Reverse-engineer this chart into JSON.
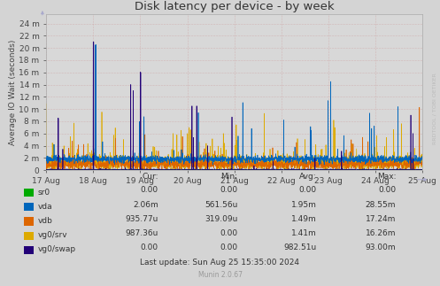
{
  "title": "Disk latency per device - by week",
  "ylabel": "Average IO Wait (seconds)",
  "background_color": "#d4d4d4",
  "plot_bg_color": "#d8d8d8",
  "grid_color": "#cc9999",
  "x_tick_labels": [
    "17 Aug",
    "18 Aug",
    "19 Aug",
    "20 Aug",
    "21 Aug",
    "22 Aug",
    "23 Aug",
    "24 Aug",
    "25 Aug"
  ],
  "y_tick_labels": [
    "0",
    "2 m",
    "4 m",
    "6 m",
    "8 m",
    "10 m",
    "12 m",
    "14 m",
    "16 m",
    "18 m",
    "20 m",
    "22 m",
    "24 m"
  ],
  "y_tick_values": [
    0,
    0.002,
    0.004,
    0.006,
    0.008,
    0.01,
    0.012,
    0.014,
    0.016,
    0.018,
    0.02,
    0.022,
    0.024
  ],
  "ylim": [
    0,
    0.0255
  ],
  "series_order": [
    "vg0/srv",
    "vdb",
    "vda",
    "vg0/swap",
    "sr0"
  ],
  "series": {
    "sr0": {
      "color": "#00aa00"
    },
    "vda": {
      "color": "#0066bb"
    },
    "vdb": {
      "color": "#dd6600"
    },
    "vg0/srv": {
      "color": "#ddaa00"
    },
    "vg0/swap": {
      "color": "#220077"
    }
  },
  "legend_entries": [
    {
      "label": "sr0",
      "color": "#00aa00"
    },
    {
      "label": "vda",
      "color": "#0066bb"
    },
    {
      "label": "vdb",
      "color": "#dd6600"
    },
    {
      "label": "vg0/srv",
      "color": "#ddaa00"
    },
    {
      "label": "vg0/swap",
      "color": "#220077"
    }
  ],
  "stats": [
    [
      "sr0",
      "0.00",
      "0.00",
      "0.00",
      "0.00"
    ],
    [
      "vda",
      "2.06m",
      "561.56u",
      "1.95m",
      "28.55m"
    ],
    [
      "vdb",
      "935.77u",
      "319.09u",
      "1.49m",
      "17.24m"
    ],
    [
      "vg0/srv",
      "987.36u",
      "0.00",
      "1.41m",
      "16.26m"
    ],
    [
      "vg0/swap",
      "0.00",
      "0.00",
      "982.51u",
      "93.00m"
    ]
  ],
  "last_update": "Last update: Sun Aug 25 15:35:00 2024",
  "munin_version": "Munin 2.0.67",
  "watermark": "RRDTOOL / TOBI OETIKER"
}
